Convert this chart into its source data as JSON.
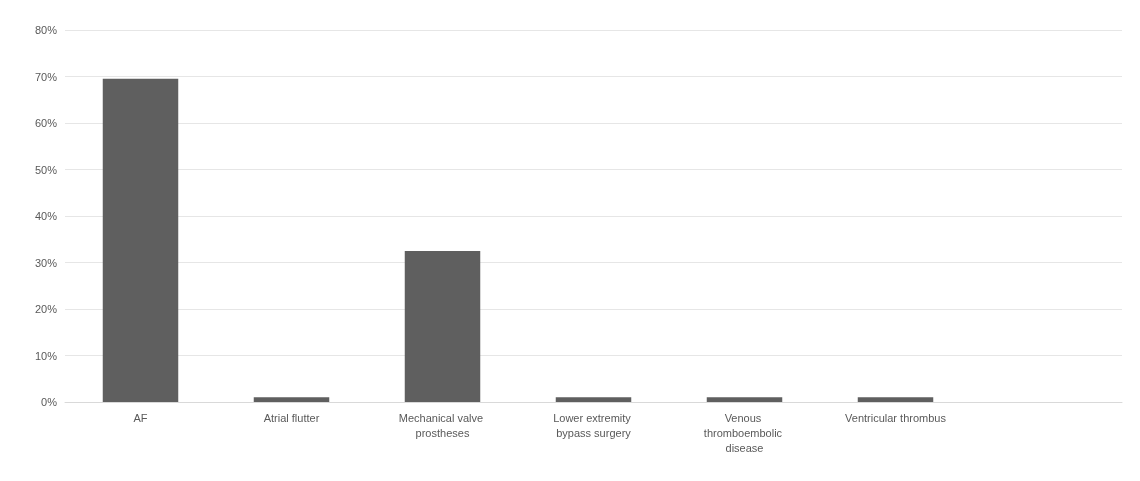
{
  "chart_data": {
    "type": "bar",
    "categories": [
      "AF",
      "Atrial flutter",
      "Mechanical valve prostheses",
      "Lower extremity bypass surgery",
      "Venous thromboembolic disease",
      "Ventricular thrombus",
      null
    ],
    "values": [
      69.5,
      1,
      32.5,
      1,
      1,
      1,
      null
    ],
    "color": "#5f5f5f",
    "ylim": [
      0,
      80
    ],
    "yticks": [
      {
        "value": 0,
        "label": "0%"
      },
      {
        "value": 10,
        "label": "10%"
      },
      {
        "value": 20,
        "label": "20%"
      },
      {
        "value": 30,
        "label": "30%"
      },
      {
        "value": 40,
        "label": "40%"
      },
      {
        "value": 50,
        "label": "50%"
      },
      {
        "value": 60,
        "label": "60%"
      },
      {
        "value": 70,
        "label": "70%"
      },
      {
        "value": 80,
        "label": "80%"
      }
    ],
    "grid": "y"
  }
}
